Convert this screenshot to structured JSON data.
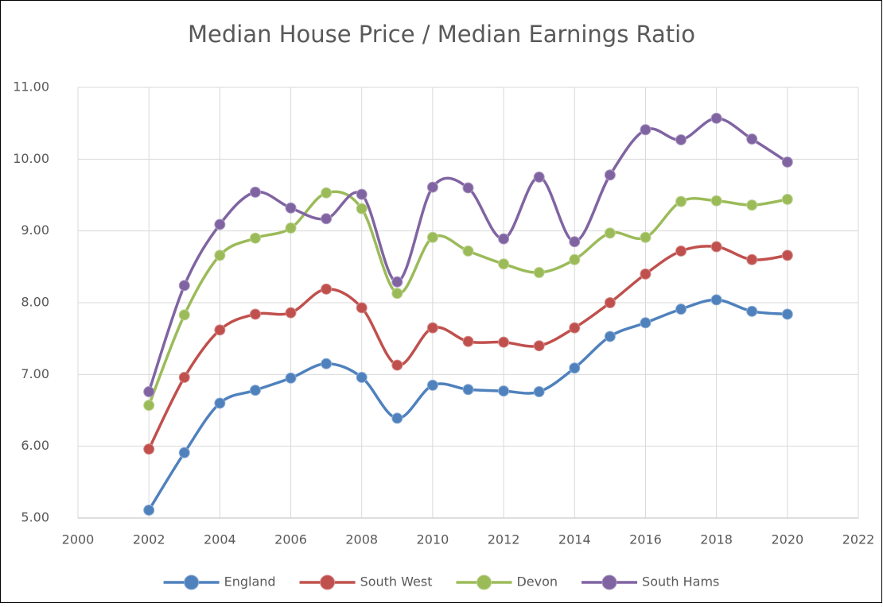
{
  "chart_data": {
    "type": "line",
    "title": "Median House Price / Median Earnings Ratio",
    "x": [
      2002,
      2003,
      2004,
      2005,
      2006,
      2007,
      2008,
      2009,
      2010,
      2011,
      2012,
      2013,
      2014,
      2015,
      2016,
      2017,
      2018,
      2019,
      2020
    ],
    "series": [
      {
        "name": "England",
        "color": "#4f81bd",
        "values": [
          5.11,
          5.91,
          6.6,
          6.78,
          6.95,
          7.15,
          6.96,
          6.39,
          6.85,
          6.79,
          6.77,
          6.76,
          7.09,
          7.53,
          7.72,
          7.91,
          8.04,
          7.88,
          7.84
        ]
      },
      {
        "name": "South West",
        "color": "#c0504d",
        "values": [
          5.96,
          6.96,
          7.62,
          7.84,
          7.86,
          8.19,
          7.93,
          7.13,
          7.65,
          7.46,
          7.45,
          7.4,
          7.65,
          8.0,
          8.4,
          8.72,
          8.78,
          8.6,
          8.66
        ]
      },
      {
        "name": "Devon",
        "color": "#9bbb59",
        "values": [
          6.57,
          7.83,
          8.66,
          8.9,
          9.04,
          9.53,
          9.31,
          8.13,
          8.91,
          8.72,
          8.54,
          8.42,
          8.6,
          8.97,
          8.91,
          9.41,
          9.42,
          9.36,
          9.44
        ]
      },
      {
        "name": "South Hams",
        "color": "#8064a2",
        "values": [
          6.76,
          8.24,
          9.09,
          9.54,
          9.32,
          9.17,
          9.51,
          8.29,
          9.61,
          9.6,
          8.89,
          9.75,
          8.85,
          9.78,
          10.41,
          10.27,
          10.57,
          10.28,
          9.96
        ]
      }
    ],
    "xlim": [
      2000,
      2022
    ],
    "xticks": [
      2000,
      2002,
      2004,
      2006,
      2008,
      2010,
      2012,
      2014,
      2016,
      2018,
      2020,
      2022
    ],
    "ylim": [
      5,
      11
    ],
    "yticks": [
      {
        "value": 5,
        "label": "5.00"
      },
      {
        "value": 6,
        "label": "6.00"
      },
      {
        "value": 7,
        "label": "7.00"
      },
      {
        "value": 8,
        "label": "8.00"
      },
      {
        "value": 9,
        "label": "9.00"
      },
      {
        "value": 10,
        "label": "10.00"
      },
      {
        "value": 11,
        "label": "11.00"
      }
    ],
    "grid": true,
    "smooth": true,
    "legend": "bottom"
  }
}
